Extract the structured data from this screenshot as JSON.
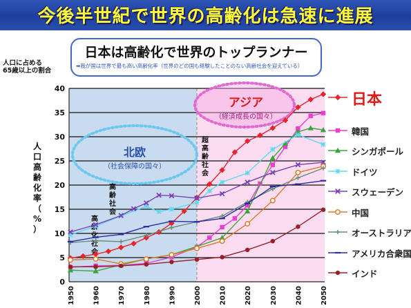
{
  "header": {
    "title": "今後半世紀で世界の高齢化は急速に進展"
  },
  "subtitle": {
    "title": "日本は高齢化で世界のトップランナー",
    "note": "➡我が国は世界で最も高い高齢化率（世界のどの国も経験したことのない高齢社会を迎えている）"
  },
  "y_caption": {
    "line1": "人口に占める",
    "line2": "65歳以上の割合"
  },
  "y_axis_label": "人口高齢化率（%）",
  "annotations": {
    "hokuo_title": "北欧",
    "hokuo_sub": "（社会保障の国々）",
    "asia_title": "アジア",
    "asia_sub": "（経済成長の国々）",
    "koreika": "高齢化社会",
    "korei": "高齢社会",
    "chokorei": "超高齢社会"
  },
  "colors": {
    "header_bg": "#2347a5",
    "header_text": "#ffff33",
    "left_region": "#c9dcef",
    "right_region": "#fcdcf0",
    "hokuo_ellipse": "#6cc8ee",
    "asia_ellipse": "#f5a8e4",
    "asia_text": "#e01a1a"
  },
  "chart_data": {
    "type": "line",
    "ylabel": "人口高齢化率（%）",
    "ylim": [
      0,
      40
    ],
    "yticks": [
      0,
      5,
      10,
      15,
      20,
      25,
      30,
      35,
      40
    ],
    "x": [
      1950,
      1960,
      1970,
      1980,
      1990,
      2000,
      2010,
      2020,
      2030,
      2040,
      2050
    ],
    "grid": true,
    "legend": "right",
    "series": [
      {
        "name": "日本",
        "color": "#e8232b",
        "marker": "diamond",
        "points": [
          [
            1950,
            4.9
          ],
          [
            1955,
            5.3
          ],
          [
            1960,
            5.7
          ],
          [
            1965,
            6.3
          ],
          [
            1970,
            7.1
          ],
          [
            1975,
            7.9
          ],
          [
            1980,
            9.1
          ],
          [
            1985,
            10.3
          ],
          [
            1990,
            12.1
          ],
          [
            1995,
            14.6
          ],
          [
            2000,
            17.4
          ],
          [
            2005,
            20.2
          ],
          [
            2010,
            23.1
          ],
          [
            2015,
            26.8
          ],
          [
            2020,
            29.1
          ],
          [
            2025,
            30.3
          ],
          [
            2030,
            31.8
          ],
          [
            2035,
            33.4
          ],
          [
            2040,
            36.1
          ],
          [
            2045,
            37.7
          ],
          [
            2050,
            38.8
          ]
        ]
      },
      {
        "name": "韓国",
        "color": "#e83fcf",
        "marker": "square",
        "points": [
          [
            1950,
            3.0
          ],
          [
            1960,
            3.3
          ],
          [
            1970,
            3.4
          ],
          [
            1980,
            3.8
          ],
          [
            1990,
            5.1
          ],
          [
            2000,
            7.2
          ],
          [
            2005,
            9.1
          ],
          [
            2010,
            11.3
          ],
          [
            2015,
            13.1
          ],
          [
            2020,
            15.8
          ],
          [
            2025,
            20.3
          ],
          [
            2030,
            24.2
          ],
          [
            2035,
            27.9
          ],
          [
            2040,
            31.7
          ],
          [
            2045,
            34.3
          ],
          [
            2050,
            34.9
          ]
        ]
      },
      {
        "name": "シンガポール",
        "color": "#3aa63a",
        "marker": "triangle",
        "points": [
          [
            1950,
            2.4
          ],
          [
            1960,
            2.2
          ],
          [
            1970,
            3.5
          ],
          [
            1980,
            4.7
          ],
          [
            1990,
            5.6
          ],
          [
            2000,
            7.3
          ],
          [
            2010,
            9.1
          ],
          [
            2020,
            14.6
          ],
          [
            2030,
            25.6
          ],
          [
            2035,
            28.6
          ],
          [
            2040,
            31.0
          ],
          [
            2045,
            31.8
          ],
          [
            2050,
            31.4
          ]
        ]
      },
      {
        "name": "ドイツ",
        "color": "#5ed9ee",
        "marker": "star",
        "points": [
          [
            1950,
            9.7
          ],
          [
            1960,
            11.5
          ],
          [
            1970,
            13.6
          ],
          [
            1980,
            15.6
          ],
          [
            1985,
            14.5
          ],
          [
            1990,
            15.0
          ],
          [
            2000,
            16.4
          ],
          [
            2005,
            18.8
          ],
          [
            2010,
            20.6
          ],
          [
            2020,
            22.5
          ],
          [
            2030,
            27.4
          ],
          [
            2040,
            30.4
          ],
          [
            2050,
            28.4
          ]
        ]
      },
      {
        "name": "スウェーデン",
        "color": "#7a3fb8",
        "marker": "x",
        "points": [
          [
            1950,
            10.3
          ],
          [
            1960,
            11.8
          ],
          [
            1970,
            13.7
          ],
          [
            1975,
            15.1
          ],
          [
            1980,
            16.3
          ],
          [
            1985,
            17.9
          ],
          [
            1990,
            17.8
          ],
          [
            2000,
            17.3
          ],
          [
            2010,
            18.2
          ],
          [
            2020,
            20.6
          ],
          [
            2030,
            22.6
          ],
          [
            2040,
            24.2
          ],
          [
            2050,
            24.7
          ]
        ]
      },
      {
        "name": "中国",
        "color": "#e07a2a",
        "marker": "circle",
        "points": [
          [
            1950,
            4.5
          ],
          [
            1960,
            4.7
          ],
          [
            1970,
            3.7
          ],
          [
            1980,
            4.7
          ],
          [
            1990,
            5.6
          ],
          [
            2000,
            6.9
          ],
          [
            2010,
            8.4
          ],
          [
            2020,
            12.0
          ],
          [
            2030,
            16.8
          ],
          [
            2040,
            22.6
          ],
          [
            2050,
            23.9
          ]
        ]
      },
      {
        "name": "オーストラリア",
        "color": "#6a8a7a",
        "marker": "plus",
        "points": [
          [
            1950,
            8.1
          ],
          [
            1960,
            8.5
          ],
          [
            1970,
            8.3
          ],
          [
            1980,
            9.6
          ],
          [
            1990,
            11.2
          ],
          [
            2000,
            12.4
          ],
          [
            2010,
            13.6
          ],
          [
            2020,
            16.5
          ],
          [
            2030,
            19.2
          ],
          [
            2040,
            21.5
          ],
          [
            2050,
            23.5
          ]
        ]
      },
      {
        "name": "アメリカ合衆国",
        "color": "#2a2aa8",
        "marker": "dash",
        "points": [
          [
            1950,
            8.3
          ],
          [
            1960,
            9.2
          ],
          [
            1970,
            9.8
          ],
          [
            1980,
            11.4
          ],
          [
            1990,
            12.5
          ],
          [
            2000,
            12.4
          ],
          [
            2010,
            13.1
          ],
          [
            2020,
            16.2
          ],
          [
            2030,
            19.7
          ],
          [
            2040,
            20.2
          ],
          [
            2050,
            20.9
          ]
        ]
      },
      {
        "name": "インド",
        "color": "#9a1f2a",
        "marker": "dot",
        "points": [
          [
            1950,
            3.1
          ],
          [
            1960,
            3.1
          ],
          [
            1970,
            3.3
          ],
          [
            1980,
            3.6
          ],
          [
            1990,
            4.1
          ],
          [
            2000,
            4.6
          ],
          [
            2010,
            5.1
          ],
          [
            2020,
            6.6
          ],
          [
            2030,
            8.4
          ],
          [
            2040,
            11.4
          ],
          [
            2050,
            14.9
          ]
        ]
      }
    ]
  }
}
